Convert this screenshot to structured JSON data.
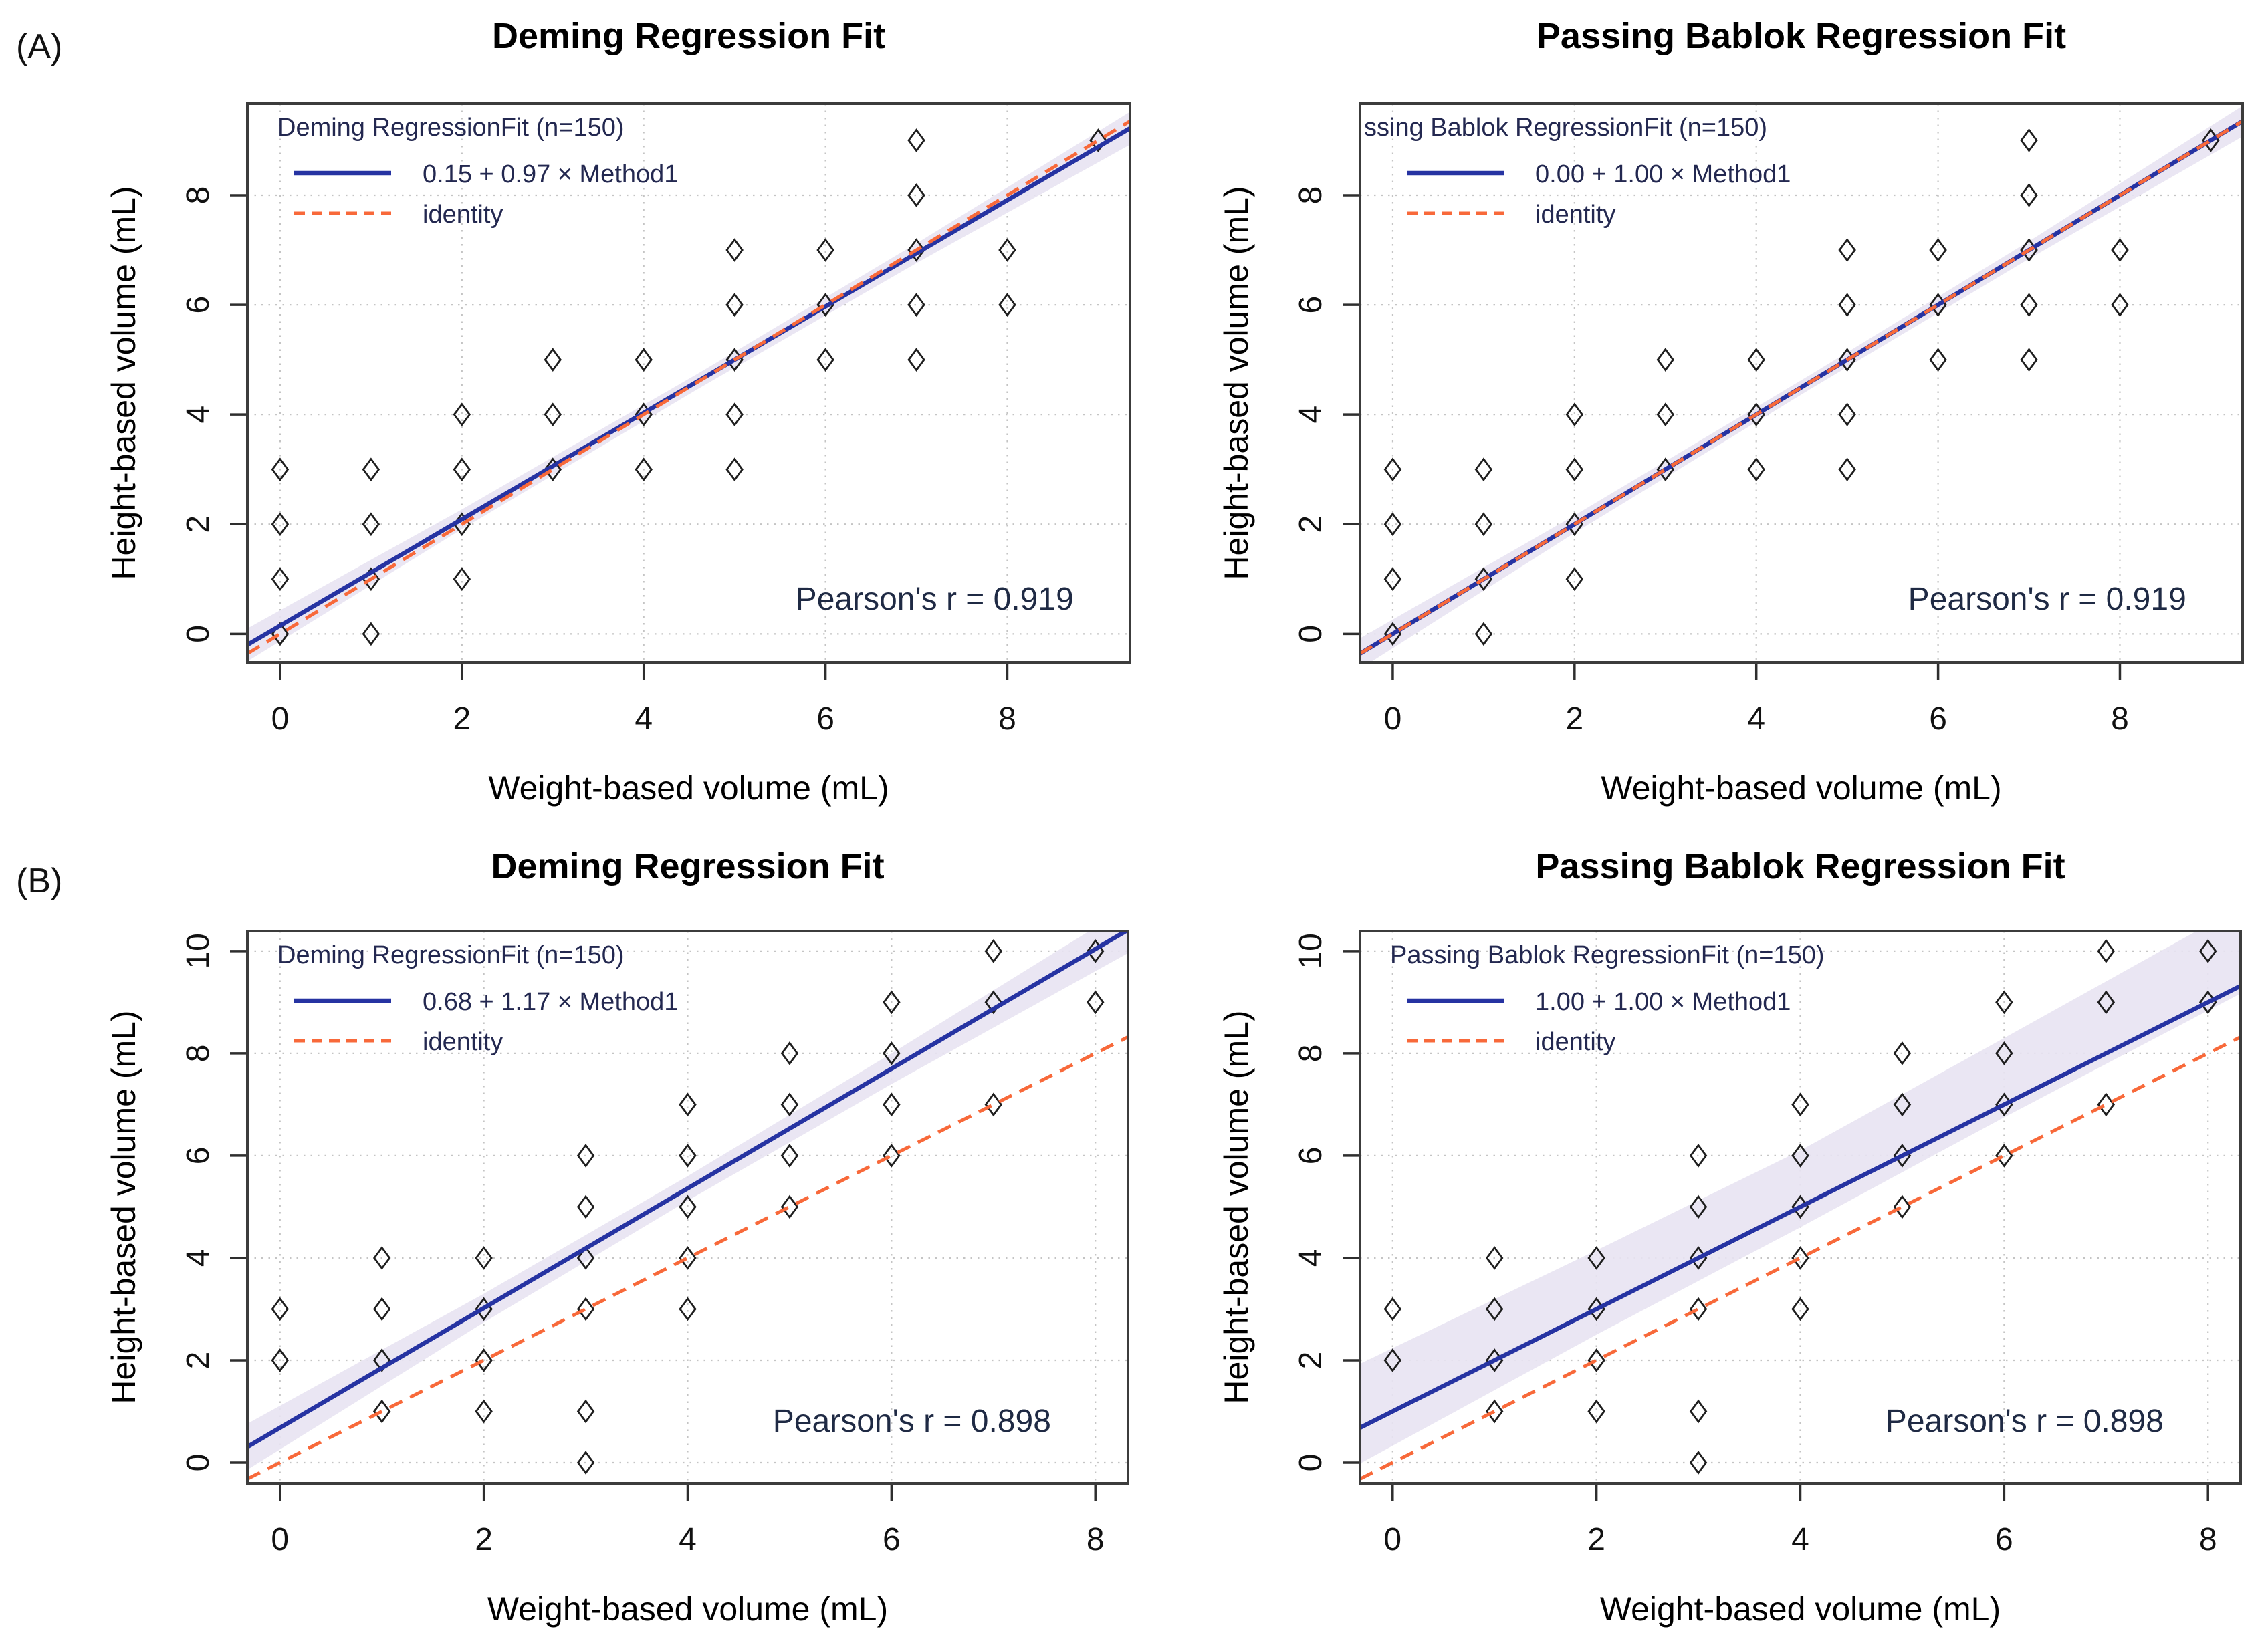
{
  "figure": {
    "panel_a_label": "(A)",
    "panel_b_label": "(B)"
  },
  "colors": {
    "fit_line": "#2633a2",
    "identity_line": "#f8693a",
    "ci_band": "#e8e3f2",
    "grid": "#c4c4c4",
    "frame": "#3c3c3c",
    "point_outline": "#1e1e1e",
    "title_text": "#000000",
    "legend_text": "#232850",
    "pearson_text": "#1f2a44",
    "tick_text": "#111111"
  },
  "chart_data": [
    {
      "type": "scatter",
      "panel": "A",
      "title": "Deming Regression Fit",
      "xlabel": "Weight-based volume (mL)",
      "ylabel": "Height-based volume (mL)",
      "x_ticks": [
        0,
        2,
        4,
        6,
        8
      ],
      "y_ticks": [
        0,
        2,
        4,
        6,
        8
      ],
      "xlim": [
        -0.36,
        9.35
      ],
      "ylim": [
        -0.52,
        9.67
      ],
      "legend": {
        "title": "Deming RegressionFit (n=150)",
        "fit_label": "0.15 + 0.97 × Method1",
        "identity_label": "identity"
      },
      "fit": {
        "intercept": 0.15,
        "slope": 0.97
      },
      "identity": {
        "intercept": 0.0,
        "slope": 1.0
      },
      "pearson_label": "Pearson's r = 0.919",
      "pearson_pos": [
        7.2,
        0.44
      ],
      "band": {
        "x": [
          -0.36,
          2,
          4.6,
          7,
          9.35
        ],
        "upper": [
          0.1,
          2.27,
          4.75,
          7.12,
          9.52
        ],
        "lower": [
          -0.5,
          1.91,
          4.47,
          6.76,
          8.92
        ]
      },
      "points": [
        [
          0,
          0
        ],
        [
          0,
          1
        ],
        [
          0,
          2
        ],
        [
          0,
          3
        ],
        [
          1,
          0
        ],
        [
          1,
          1
        ],
        [
          1,
          2
        ],
        [
          1,
          3
        ],
        [
          2,
          1
        ],
        [
          2,
          2
        ],
        [
          2,
          3
        ],
        [
          2,
          4
        ],
        [
          3,
          3
        ],
        [
          3,
          4
        ],
        [
          3,
          5
        ],
        [
          4,
          3
        ],
        [
          4,
          4
        ],
        [
          4,
          5
        ],
        [
          5,
          3
        ],
        [
          5,
          4
        ],
        [
          5,
          5
        ],
        [
          5,
          6
        ],
        [
          5,
          7
        ],
        [
          6,
          5
        ],
        [
          6,
          6
        ],
        [
          6,
          7
        ],
        [
          7,
          5
        ],
        [
          7,
          6
        ],
        [
          7,
          7
        ],
        [
          7,
          8
        ],
        [
          7,
          9
        ],
        [
          8,
          6
        ],
        [
          8,
          7
        ],
        [
          9,
          9
        ]
      ]
    },
    {
      "type": "scatter",
      "panel": "A",
      "title": "Passing Bablok Regression Fit",
      "xlabel": "Weight-based volume (mL)",
      "ylabel": "Height-based volume (mL)",
      "x_ticks": [
        0,
        2,
        4,
        6,
        8
      ],
      "y_ticks": [
        0,
        2,
        4,
        6,
        8
      ],
      "xlim": [
        -0.36,
        9.35
      ],
      "ylim": [
        -0.52,
        9.67
      ],
      "legend": {
        "title": "ssing Bablok RegressionFit (n=150)",
        "fit_label": "0.00 + 1.00 × Method1",
        "identity_label": "identity"
      },
      "fit": {
        "intercept": 0.0,
        "slope": 1.0
      },
      "identity": {
        "intercept": 0.0,
        "slope": 1.0
      },
      "pearson_label": "Pearson's r = 0.919",
      "pearson_pos": [
        7.2,
        0.44
      ],
      "band": {
        "x": [
          -0.36,
          2,
          4.6,
          7,
          9.35
        ],
        "upper": [
          -0.08,
          2.16,
          4.73,
          7.16,
          9.63
        ],
        "lower": [
          -0.64,
          1.84,
          4.47,
          6.84,
          9.07
        ]
      },
      "points": [
        [
          0,
          0
        ],
        [
          0,
          1
        ],
        [
          0,
          2
        ],
        [
          0,
          3
        ],
        [
          1,
          0
        ],
        [
          1,
          1
        ],
        [
          1,
          2
        ],
        [
          1,
          3
        ],
        [
          2,
          1
        ],
        [
          2,
          2
        ],
        [
          2,
          3
        ],
        [
          2,
          4
        ],
        [
          3,
          3
        ],
        [
          3,
          4
        ],
        [
          3,
          5
        ],
        [
          4,
          3
        ],
        [
          4,
          4
        ],
        [
          4,
          5
        ],
        [
          5,
          3
        ],
        [
          5,
          4
        ],
        [
          5,
          5
        ],
        [
          5,
          6
        ],
        [
          5,
          7
        ],
        [
          6,
          5
        ],
        [
          6,
          6
        ],
        [
          6,
          7
        ],
        [
          7,
          5
        ],
        [
          7,
          6
        ],
        [
          7,
          7
        ],
        [
          7,
          8
        ],
        [
          7,
          9
        ],
        [
          8,
          6
        ],
        [
          8,
          7
        ],
        [
          9,
          9
        ]
      ]
    },
    {
      "type": "scatter",
      "panel": "B",
      "title": "Deming Regression Fit",
      "xlabel": "Weight-based volume (mL)",
      "ylabel": "Height-based volume (mL)",
      "x_ticks": [
        0,
        2,
        4,
        6,
        8
      ],
      "y_ticks": [
        0,
        2,
        4,
        6,
        8,
        10
      ],
      "xlim": [
        -0.32,
        8.32
      ],
      "ylim": [
        -0.405,
        10.39
      ],
      "legend": {
        "title": "Deming RegressionFit (n=150)",
        "fit_label": "0.68 + 1.17 × Method1",
        "identity_label": "identity"
      },
      "fit": {
        "intercept": 0.68,
        "slope": 1.17
      },
      "identity": {
        "intercept": 0.0,
        "slope": 1.0
      },
      "pearson_label": "Pearson's r = 0.898",
      "pearson_pos": [
        6.2,
        0.6
      ],
      "band": {
        "x": [
          -0.32,
          2,
          4,
          6,
          8.32
        ],
        "upper": [
          0.76,
          3.3,
          5.6,
          8.0,
          10.86
        ],
        "lower": [
          -0.14,
          2.74,
          5.12,
          7.4,
          9.96
        ]
      },
      "points": [
        [
          0,
          2
        ],
        [
          0,
          3
        ],
        [
          1,
          1
        ],
        [
          1,
          2
        ],
        [
          1,
          3
        ],
        [
          1,
          4
        ],
        [
          2,
          1
        ],
        [
          2,
          2
        ],
        [
          2,
          3
        ],
        [
          2,
          4
        ],
        [
          3,
          0
        ],
        [
          3,
          1
        ],
        [
          3,
          3
        ],
        [
          3,
          4
        ],
        [
          3,
          5
        ],
        [
          3,
          6
        ],
        [
          4,
          3
        ],
        [
          4,
          4
        ],
        [
          4,
          5
        ],
        [
          4,
          6
        ],
        [
          4,
          7
        ],
        [
          5,
          5
        ],
        [
          5,
          6
        ],
        [
          5,
          7
        ],
        [
          5,
          8
        ],
        [
          6,
          6
        ],
        [
          6,
          7
        ],
        [
          6,
          8
        ],
        [
          6,
          9
        ],
        [
          7,
          7
        ],
        [
          7,
          9
        ],
        [
          7,
          10
        ],
        [
          8,
          9
        ],
        [
          8,
          10
        ]
      ]
    },
    {
      "type": "scatter",
      "panel": "B",
      "title": "Passing Bablok Regression Fit",
      "xlabel": "Weight-based volume (mL)",
      "ylabel": "Height-based volume (mL)",
      "x_ticks": [
        0,
        2,
        4,
        6,
        8
      ],
      "y_ticks": [
        0,
        2,
        4,
        6,
        8,
        10
      ],
      "xlim": [
        -0.32,
        8.32
      ],
      "ylim": [
        -0.405,
        10.39
      ],
      "legend": {
        "title": "Passing Bablok RegressionFit (n=150)",
        "fit_label": "1.00 + 1.00 × Method1",
        "identity_label": "identity"
      },
      "fit": {
        "intercept": 1.0,
        "slope": 1.0
      },
      "identity": {
        "intercept": 0.0,
        "slope": 1.0
      },
      "pearson_label": "Pearson's r = 0.898",
      "pearson_pos": [
        6.2,
        0.6
      ],
      "band": {
        "x": [
          -0.32,
          2,
          4,
          6,
          8.32
        ],
        "upper": [
          1.93,
          4.15,
          6.1,
          8.3,
          10.87
        ],
        "lower": [
          -0.02,
          2.5,
          4.6,
          6.75,
          9.17
        ]
      },
      "points": [
        [
          0,
          2
        ],
        [
          0,
          3
        ],
        [
          1,
          1
        ],
        [
          1,
          2
        ],
        [
          1,
          3
        ],
        [
          1,
          4
        ],
        [
          2,
          1
        ],
        [
          2,
          2
        ],
        [
          2,
          3
        ],
        [
          2,
          4
        ],
        [
          3,
          0
        ],
        [
          3,
          1
        ],
        [
          3,
          3
        ],
        [
          3,
          4
        ],
        [
          3,
          5
        ],
        [
          3,
          6
        ],
        [
          4,
          3
        ],
        [
          4,
          4
        ],
        [
          4,
          5
        ],
        [
          4,
          6
        ],
        [
          4,
          7
        ],
        [
          5,
          5
        ],
        [
          5,
          6
        ],
        [
          5,
          7
        ],
        [
          5,
          8
        ],
        [
          6,
          6
        ],
        [
          6,
          7
        ],
        [
          6,
          8
        ],
        [
          6,
          9
        ],
        [
          7,
          7
        ],
        [
          7,
          9
        ],
        [
          7,
          10
        ],
        [
          8,
          9
        ],
        [
          8,
          10
        ]
      ]
    }
  ]
}
